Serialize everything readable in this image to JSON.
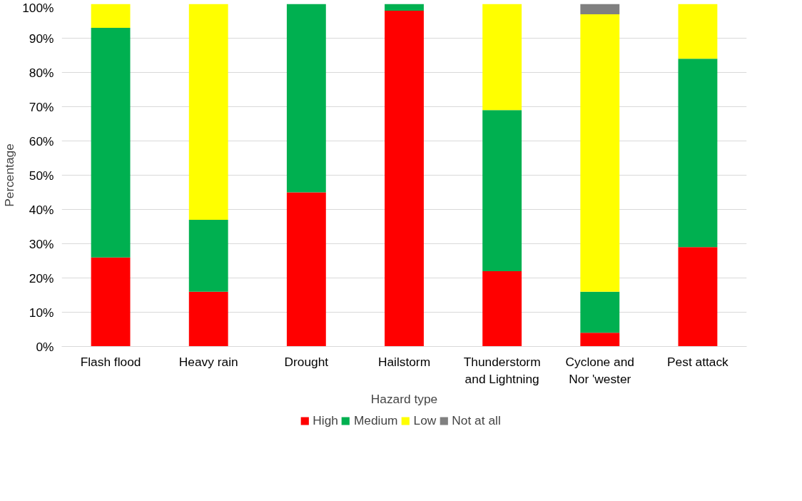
{
  "chart_data": {
    "type": "bar",
    "stacked": true,
    "xlabel": "Hazard type",
    "ylabel": "Percentage",
    "categories": [
      "Flash flood",
      "Heavy rain",
      "Drought",
      "Hailstorm",
      "Thunderstorm and Lightning",
      "Cyclone and Nor 'wester",
      "Pest attack"
    ],
    "series": [
      {
        "name": "High",
        "color": "#ff0000",
        "values": [
          26,
          16,
          45,
          98,
          22,
          4,
          29
        ]
      },
      {
        "name": "Medium",
        "color": "#00b050",
        "values": [
          67,
          21,
          55,
          2,
          47,
          12,
          55
        ]
      },
      {
        "name": "Low",
        "color": "#ffff00",
        "values": [
          7,
          63,
          null,
          null,
          31,
          81,
          16
        ]
      },
      {
        "name": "Not at all",
        "color": "#808080",
        "values": [
          null,
          null,
          null,
          null,
          null,
          3,
          null
        ]
      }
    ],
    "ylim": [
      0,
      100
    ],
    "yticks": [
      {
        "value": 0,
        "label": "0%"
      },
      {
        "value": 10,
        "label": "10%"
      },
      {
        "value": 20,
        "label": "20%"
      },
      {
        "value": 30,
        "label": "30%"
      },
      {
        "value": 40,
        "label": "40%"
      },
      {
        "value": 50,
        "label": "50%"
      },
      {
        "value": 60,
        "label": "60%"
      },
      {
        "value": 70,
        "label": "70%"
      },
      {
        "value": 80,
        "label": "80%"
      },
      {
        "value": 90,
        "label": "90%"
      },
      {
        "value": 100,
        "label": "100%"
      }
    ],
    "grid": "y",
    "legend": "bottom"
  }
}
